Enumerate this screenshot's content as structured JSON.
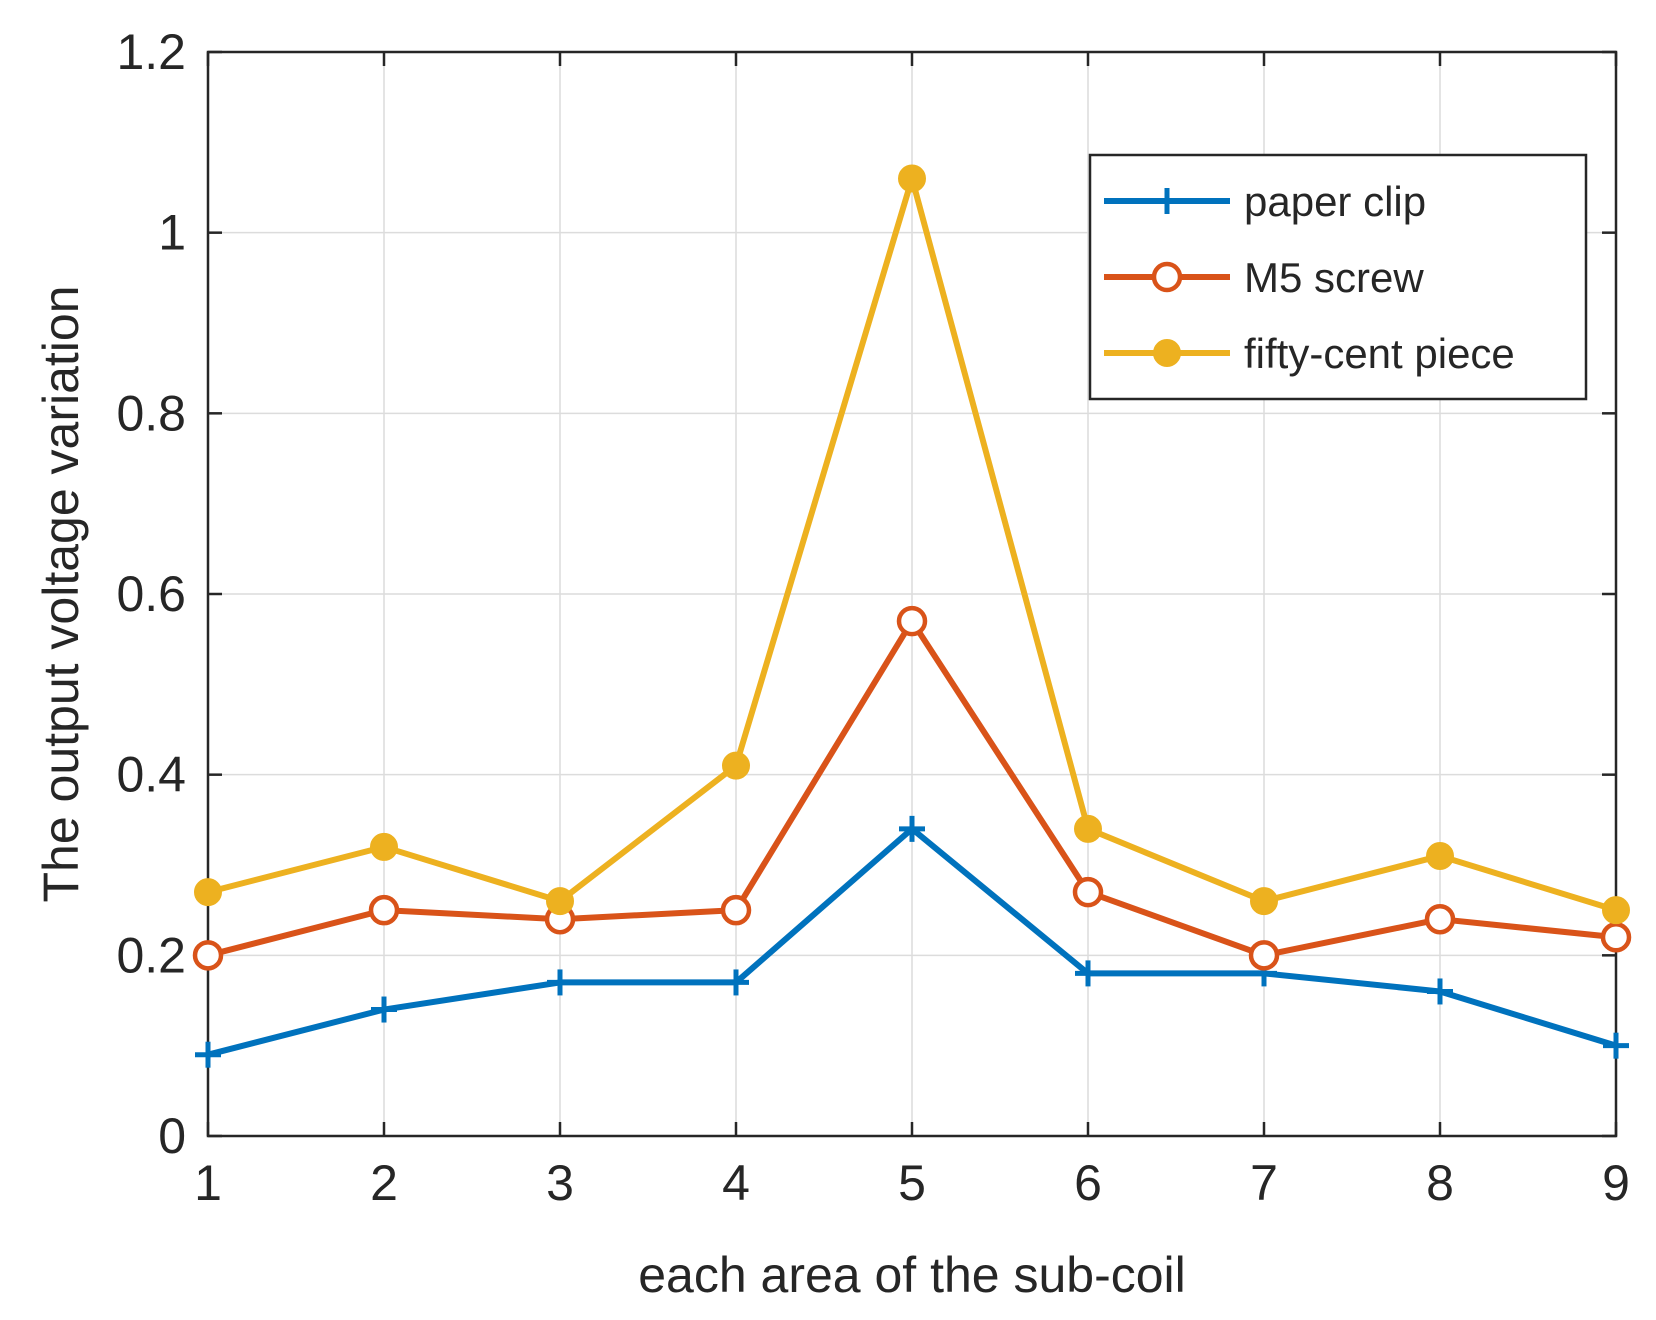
{
  "chart_data": {
    "type": "line",
    "title": "",
    "xlabel": "each area of the sub-coil",
    "ylabel": "The output voltage variation",
    "x": [
      1,
      2,
      3,
      4,
      5,
      6,
      7,
      8,
      9
    ],
    "xlim": [
      1,
      9
    ],
    "ylim": [
      0,
      1.2
    ],
    "xticks": [
      "1",
      "2",
      "3",
      "4",
      "5",
      "6",
      "7",
      "8",
      "9"
    ],
    "yticks": [
      "0",
      "0.2",
      "0.4",
      "0.6",
      "0.8",
      "1",
      "1.2"
    ],
    "grid": true,
    "legend_position": "top-right",
    "series": [
      {
        "name": "paper clip",
        "color": "#0072BD",
        "marker": "plus",
        "values": [
          0.09,
          0.14,
          0.17,
          0.17,
          0.34,
          0.18,
          0.18,
          0.16,
          0.1
        ]
      },
      {
        "name": "M5 screw",
        "color": "#D95319",
        "marker": "circle-open",
        "values": [
          0.2,
          0.25,
          0.24,
          0.25,
          0.57,
          0.27,
          0.2,
          0.24,
          0.22
        ]
      },
      {
        "name": "fifty-cent piece",
        "color": "#EDB120",
        "marker": "circle-filled",
        "values": [
          0.27,
          0.32,
          0.26,
          0.41,
          1.06,
          0.34,
          0.26,
          0.31,
          0.25
        ]
      }
    ]
  }
}
